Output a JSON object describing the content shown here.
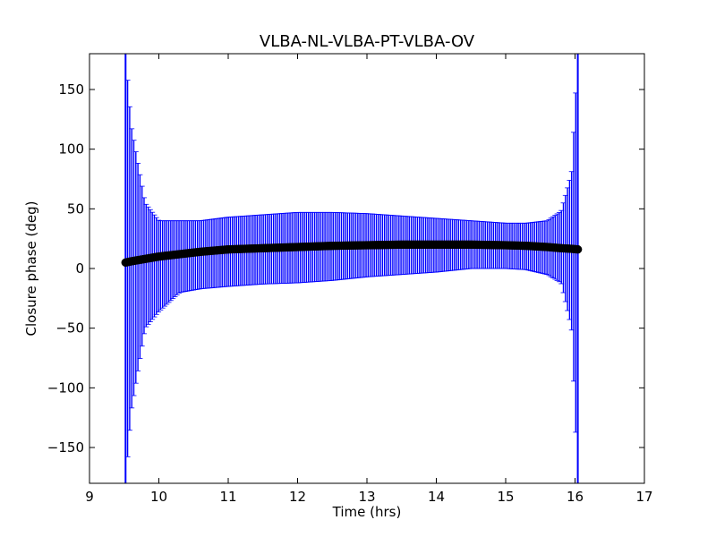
{
  "chart_data": {
    "type": "scatter",
    "title": "VLBA-NL-VLBA-PT-VLBA-OV",
    "xlabel": "Time (hrs)",
    "ylabel": "Closure phase (deg)",
    "xlim": [
      9,
      17
    ],
    "ylim": [
      -180,
      180
    ],
    "xticks": [
      "9",
      "10",
      "11",
      "12",
      "13",
      "14",
      "15",
      "16",
      "17"
    ],
    "yticks": [
      "−150",
      "−100",
      "−50",
      "0",
      "50",
      "100",
      "150"
    ],
    "grid": false,
    "series": [
      {
        "marker": "circle",
        "color": "#000000",
        "errorbar_color": "#0000ff",
        "x": [
          9.52,
          9.6,
          9.8,
          10.0,
          10.3,
          10.6,
          11.0,
          11.5,
          12.0,
          12.5,
          13.0,
          13.5,
          14.0,
          14.5,
          15.0,
          15.3,
          15.6,
          15.8,
          15.95,
          16.04
        ],
        "y": [
          5,
          6,
          8,
          10,
          12,
          14,
          16,
          17,
          18,
          19,
          19.5,
          20,
          20,
          20,
          19.5,
          19,
          18,
          17,
          16.5,
          16
        ],
        "yerr_upper": [
          180,
          120,
          55,
          40,
          40,
          40,
          43,
          45,
          47,
          47,
          46,
          44,
          42,
          40,
          38,
          38,
          40,
          48,
          80,
          180
        ],
        "yerr_lower": [
          -180,
          -120,
          -50,
          -36,
          -20,
          -17,
          -15,
          -13,
          -12,
          -10,
          -7,
          -5,
          -3,
          0,
          0,
          -1,
          -5,
          -12,
          -50,
          -180
        ]
      }
    ]
  }
}
